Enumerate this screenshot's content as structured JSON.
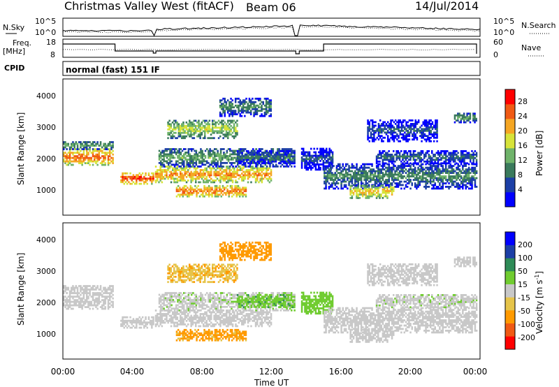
{
  "header": {
    "title": "Christmas Valley West (fitACF)",
    "beam": "Beam 06",
    "date": "14/Jul/2014"
  },
  "top_panels": {
    "nsky_label": "N.Sky",
    "nsearch_label": "N.Search",
    "noise_ticks": [
      "10^5",
      "10^0"
    ],
    "freq_label": "Freq.",
    "freq_unit": "[MHz]",
    "freq_ticks": [
      "18",
      "8"
    ],
    "nave_label": "Nave",
    "nave_ticks": [
      "60",
      "0"
    ],
    "cpid_label": "CPID",
    "cpid_value": "normal (fast) 151 IF"
  },
  "axes": {
    "ylabel": "Slant Range [km]",
    "xlabel": "Time UT",
    "y_ticks": [
      "4000",
      "3000",
      "2000",
      "1000"
    ],
    "x_ticks": [
      "00:00",
      "04:00",
      "08:00",
      "12:00",
      "16:00",
      "20:00",
      "00:00"
    ]
  },
  "colorbars": {
    "power": {
      "label": "Power [dB]",
      "ticks": [
        "28",
        "24",
        "20",
        "16",
        "12",
        "8",
        "4"
      ],
      "colors": [
        "#0000ff",
        "#1c3fa6",
        "#3a7a5c",
        "#6fb36a",
        "#d7e33a",
        "#f5a623",
        "#f05a14",
        "#ff0000"
      ]
    },
    "velocity": {
      "label": "Velocity [m s",
      "label_sup": "-1",
      "label_end": "]",
      "ticks": [
        "200",
        "100",
        "50",
        "15",
        "-15",
        "-50",
        "-100",
        "-200"
      ],
      "colors": [
        "#ff0000",
        "#f05a14",
        "#ff9a00",
        "#e6c44a",
        "#c8c8c8",
        "#70cc30",
        "#2e8b57",
        "#1c3fa6",
        "#0000ff"
      ]
    }
  },
  "chart_data": {
    "type": "heatmap",
    "panels": [
      "Power [dB]",
      "Velocity [m s^-1]"
    ],
    "x_range": [
      "00:00",
      "00:00"
    ],
    "ylim": [
      180,
      4500
    ],
    "bands": [
      {
        "t0": 0.0,
        "t1": 2.9,
        "r0": 1750,
        "r1": 2250,
        "power": 26,
        "velocity": 0
      },
      {
        "t0": 0.0,
        "t1": 2.9,
        "r0": 2250,
        "r1": 2500,
        "power": 14,
        "velocity": 0
      },
      {
        "t0": 3.3,
        "t1": 5.2,
        "r0": 1150,
        "r1": 1500,
        "power": 28,
        "velocity": 0
      },
      {
        "t0": 5.3,
        "t1": 12.0,
        "r0": 1200,
        "r1": 1700,
        "power": 24,
        "velocity": 0
      },
      {
        "t0": 5.5,
        "t1": 13.3,
        "r0": 1700,
        "r1": 2300,
        "power": 14,
        "velocity": 5
      },
      {
        "t0": 6.5,
        "t1": 10.5,
        "r0": 750,
        "r1": 1100,
        "power": 26,
        "velocity": -60
      },
      {
        "t0": 6.0,
        "t1": 10.0,
        "r0": 2600,
        "r1": 3200,
        "power": 18,
        "velocity": -45
      },
      {
        "t0": 9.0,
        "t1": 12.0,
        "r0": 3300,
        "r1": 3900,
        "power": 12,
        "velocity": -70
      },
      {
        "t0": 10.0,
        "t1": 13.3,
        "r0": 1800,
        "r1": 2200,
        "power": 10,
        "velocity": 40
      },
      {
        "t0": 13.7,
        "t1": 15.5,
        "r0": 1600,
        "r1": 2300,
        "power": 8,
        "velocity": 30
      },
      {
        "t0": 15.0,
        "t1": 23.8,
        "r0": 1000,
        "r1": 1800,
        "power": 12,
        "velocity": 0
      },
      {
        "t0": 16.5,
        "t1": 19.0,
        "r0": 700,
        "r1": 1100,
        "power": 22,
        "velocity": 0
      },
      {
        "t0": 18.0,
        "t1": 23.8,
        "r0": 1800,
        "r1": 2200,
        "power": 10,
        "velocity": 5
      },
      {
        "t0": 17.5,
        "t1": 21.5,
        "r0": 2500,
        "r1": 3200,
        "power": 8,
        "velocity": 0
      },
      {
        "t0": 22.5,
        "t1": 23.8,
        "r0": 3100,
        "r1": 3400,
        "power": 14,
        "velocity": 0
      }
    ]
  }
}
